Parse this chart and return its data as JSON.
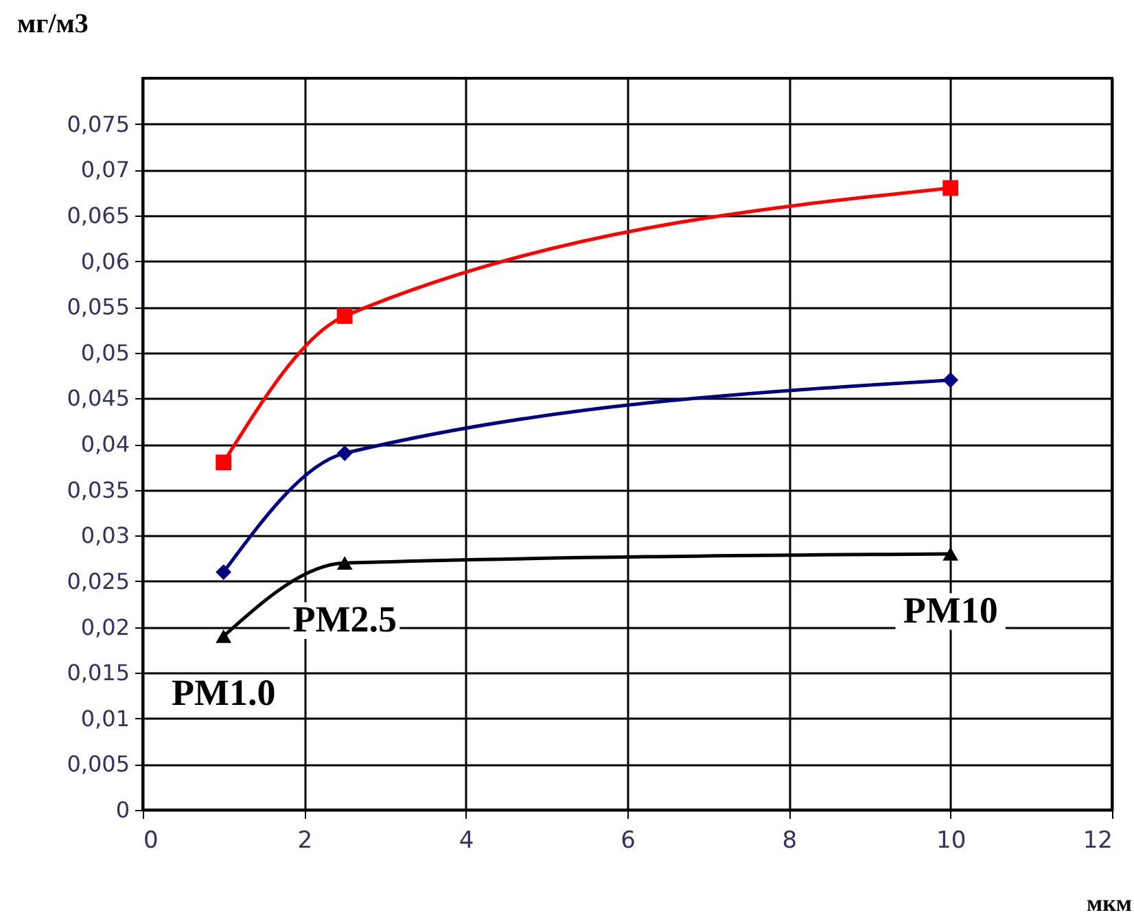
{
  "chart_data": {
    "type": "line",
    "xlabel": "мкм",
    "ylabel": "мг/м3",
    "xlim": [
      0,
      12
    ],
    "xticks": [
      0,
      2,
      4,
      6,
      8,
      10,
      12
    ],
    "ylim": [
      0,
      0.08
    ],
    "yticks": [
      {
        "value": 0,
        "label": "0"
      },
      {
        "value": 0.005,
        "label": "0,005"
      },
      {
        "value": 0.01,
        "label": "0,01"
      },
      {
        "value": 0.015,
        "label": "0,015"
      },
      {
        "value": 0.02,
        "label": "0,02"
      },
      {
        "value": 0.025,
        "label": "0,025"
      },
      {
        "value": 0.03,
        "label": "0,03"
      },
      {
        "value": 0.035,
        "label": "0,035"
      },
      {
        "value": 0.04,
        "label": "0,04"
      },
      {
        "value": 0.045,
        "label": "0,045"
      },
      {
        "value": 0.05,
        "label": "0,05"
      },
      {
        "value": 0.055,
        "label": "0,055"
      },
      {
        "value": 0.06,
        "label": "0,06"
      },
      {
        "value": 0.065,
        "label": "0,065"
      },
      {
        "value": 0.07,
        "label": "0,07"
      },
      {
        "value": 0.075,
        "label": "0,075"
      }
    ],
    "x": [
      1,
      2.5,
      10
    ],
    "series": [
      {
        "color": "#ff0000",
        "marker": "square",
        "values": [
          0.038,
          0.054,
          0.068
        ]
      },
      {
        "color": "#000080",
        "marker": "diamond",
        "values": [
          0.026,
          0.039,
          0.047
        ]
      },
      {
        "color": "#000000",
        "marker": "triangle",
        "values": [
          0.019,
          0.027,
          0.028
        ]
      }
    ],
    "annotations": [
      "PM1.0",
      "PM2.5",
      "PM10"
    ],
    "grid": true
  }
}
